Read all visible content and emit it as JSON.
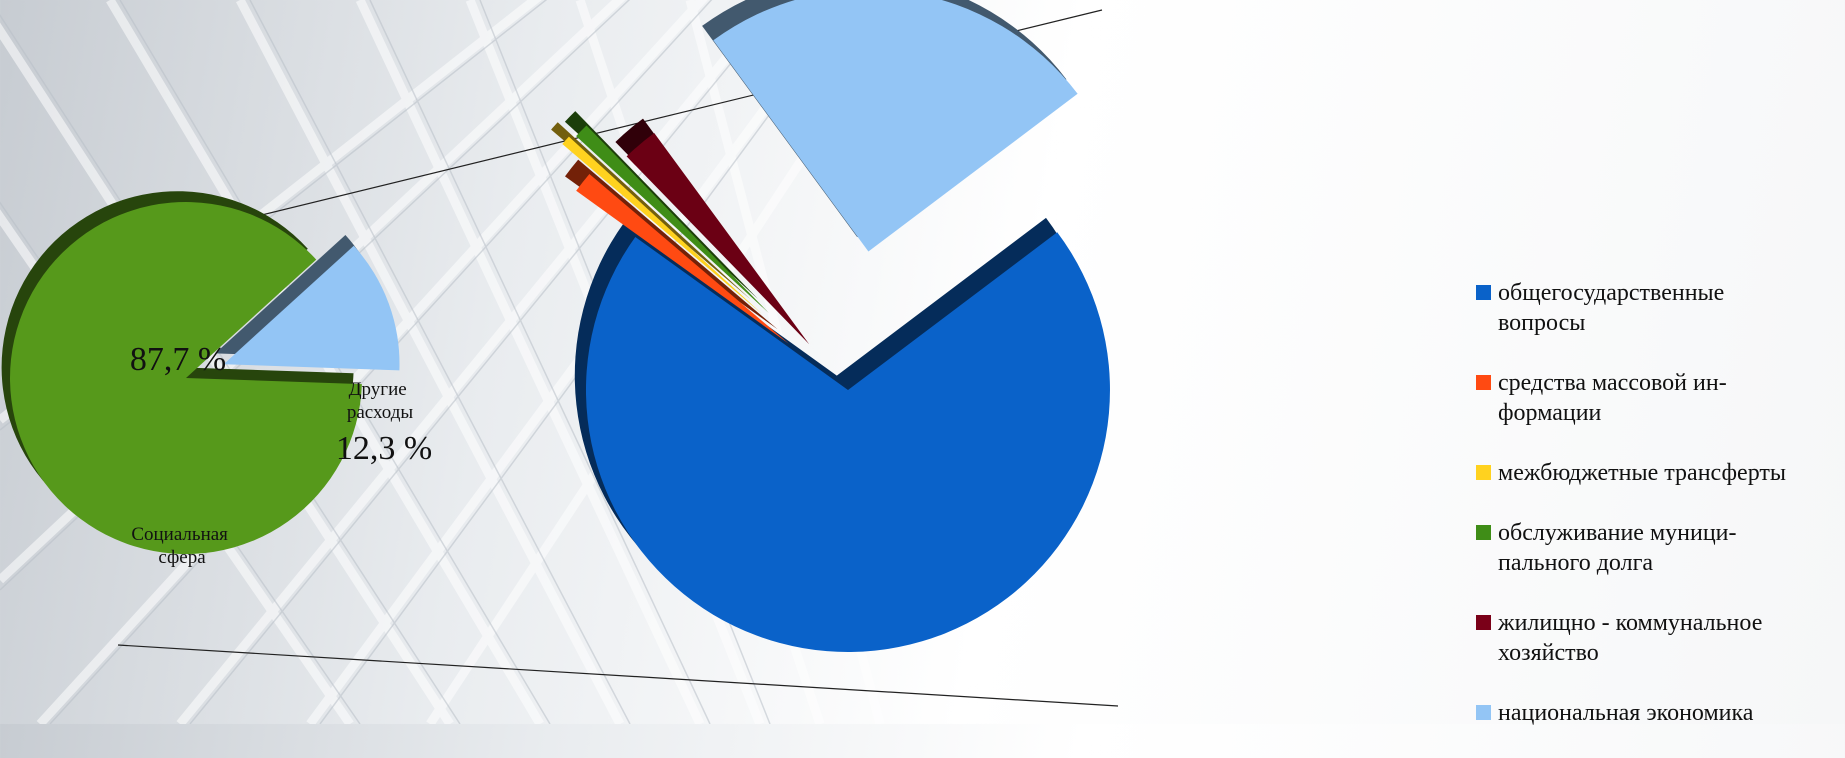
{
  "chart_data": [
    {
      "type": "pie",
      "slices": [
        {
          "name": "Социальная сфера",
          "value": 87.7,
          "value_label": "87,7 %",
          "color": "#56991b"
        },
        {
          "name": "Другие расходы",
          "value": 12.3,
          "value_label": "12,3 %",
          "color": "#93c5f5"
        }
      ],
      "labels": {
        "big_slice": "Социальная\nсфера",
        "small_slice": "Другие\nрасходы"
      }
    },
    {
      "type": "pie",
      "slices": [
        {
          "name": "общегосударственные вопросы",
          "value": 70.2,
          "color": "#0a62c9"
        },
        {
          "name": "средства массовой информации",
          "value": 1.3,
          "color": "#ff4a12"
        },
        {
          "name": "межбюджетные трансферты",
          "value": 0.6,
          "color": "#ffd21f"
        },
        {
          "name": "обслуживание муниципального долга",
          "value": 0.9,
          "color": "#3f8d17"
        },
        {
          "name": "жилищно - коммунальное хозяйство",
          "value": 2.2,
          "color": "#6b0014"
        },
        {
          "name": "национальная экономика",
          "value": 24.8,
          "color": "#93c5f5"
        }
      ],
      "legend_placement": "right"
    }
  ],
  "legend": {
    "items": [
      {
        "label": "общегосударственные\nвопросы",
        "color": "#0a62c9"
      },
      {
        "label": "средства массовой ин-\nформации",
        "color": "#ff4a12"
      },
      {
        "label": "межбюджетные трансферты",
        "color": "#ffd21f"
      },
      {
        "label": "обслуживание муници-\nпального долга",
        "color": "#3f8d17"
      },
      {
        "label": "жилищно - коммунальное\nхозяйство",
        "color": "#7a0018"
      },
      {
        "label": "национальная экономика",
        "color": "#93c5f5"
      }
    ]
  }
}
